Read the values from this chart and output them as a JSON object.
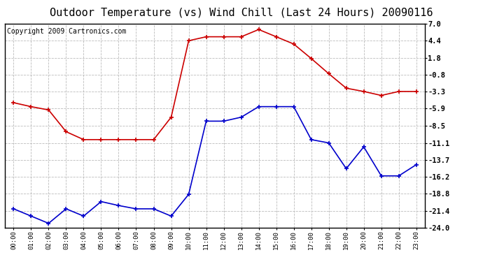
{
  "title": "Outdoor Temperature (vs) Wind Chill (Last 24 Hours) 20090116",
  "copyright": "Copyright 2009 Cartronics.com",
  "x_labels": [
    "00:00",
    "01:00",
    "02:00",
    "03:00",
    "04:00",
    "05:00",
    "06:00",
    "07:00",
    "08:00",
    "09:00",
    "10:00",
    "11:00",
    "12:00",
    "13:00",
    "14:00",
    "15:00",
    "16:00",
    "17:00",
    "18:00",
    "19:00",
    "20:00",
    "21:00",
    "22:00",
    "23:00"
  ],
  "temp_red": [
    -5.0,
    -5.6,
    -6.1,
    -9.4,
    -10.6,
    -10.6,
    -10.6,
    -10.6,
    -10.6,
    -7.2,
    4.4,
    5.0,
    5.0,
    5.0,
    6.1,
    5.0,
    3.9,
    1.7,
    -0.6,
    -2.8,
    -3.3,
    -3.9,
    -3.3,
    -3.3
  ],
  "temp_blue": [
    -21.1,
    -22.2,
    -23.3,
    -21.1,
    -22.2,
    -20.0,
    -20.6,
    -21.1,
    -21.1,
    -22.2,
    -18.9,
    -7.8,
    -7.8,
    -7.2,
    -5.6,
    -5.6,
    -5.6,
    -10.6,
    -11.1,
    -15.0,
    -11.7,
    -16.1,
    -16.1,
    -14.4
  ],
  "y_ticks": [
    7.0,
    4.4,
    1.8,
    -0.8,
    -3.3,
    -5.9,
    -8.5,
    -11.1,
    -13.7,
    -16.2,
    -18.8,
    -21.4,
    -24.0
  ],
  "y_min": -24.0,
  "y_max": 7.0,
  "red_color": "#cc0000",
  "blue_color": "#0000cc",
  "background_color": "#ffffff",
  "grid_color": "#bbbbbb",
  "title_fontsize": 11,
  "copyright_fontsize": 7
}
